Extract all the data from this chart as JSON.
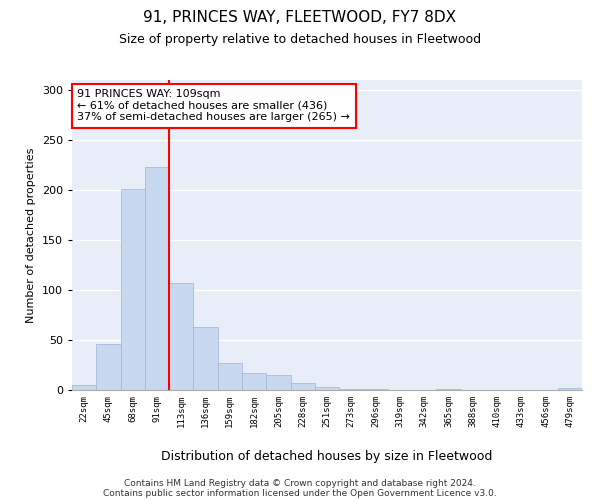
{
  "title": "91, PRINCES WAY, FLEETWOOD, FY7 8DX",
  "subtitle": "Size of property relative to detached houses in Fleetwood",
  "xlabel": "Distribution of detached houses by size in Fleetwood",
  "ylabel": "Number of detached properties",
  "bar_color": "#c8d8ef",
  "bar_edge_color": "#9ab5d8",
  "background_color": "#e8eef8",
  "grid_color": "#ffffff",
  "annotation_text": "91 PRINCES WAY: 109sqm\n← 61% of detached houses are smaller (436)\n37% of semi-detached houses are larger (265) →",
  "vline_index": 3.5,
  "categories": [
    "22sqm",
    "45sqm",
    "68sqm",
    "91sqm",
    "113sqm",
    "136sqm",
    "159sqm",
    "182sqm",
    "205sqm",
    "228sqm",
    "251sqm",
    "273sqm",
    "296sqm",
    "319sqm",
    "342sqm",
    "365sqm",
    "388sqm",
    "410sqm",
    "433sqm",
    "456sqm",
    "479sqm"
  ],
  "values": [
    5,
    46,
    201,
    223,
    107,
    63,
    27,
    17,
    15,
    7,
    3,
    1,
    1,
    0,
    0,
    1,
    0,
    0,
    0,
    0,
    2
  ],
  "ylim": [
    0,
    310
  ],
  "yticks": [
    0,
    50,
    100,
    150,
    200,
    250,
    300
  ],
  "footer_line1": "Contains HM Land Registry data © Crown copyright and database right 2024.",
  "footer_line2": "Contains public sector information licensed under the Open Government Licence v3.0.",
  "annotation_box_color": "white",
  "annotation_box_edge": "red",
  "vline_color": "red"
}
